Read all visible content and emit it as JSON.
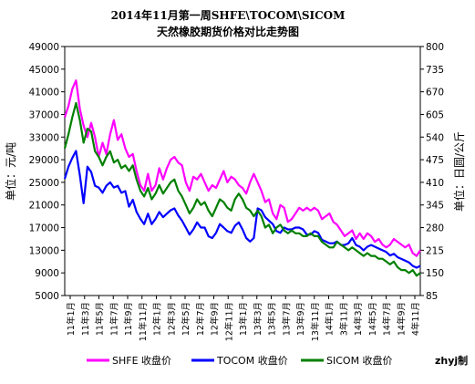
{
  "chart_data": {
    "type": "line",
    "title_line1": "2014年11月第一周SHFE\\TOCOM\\SICOM",
    "title_line2": "天然橡胶期货价格对比走势图",
    "ylabel_left": "单位：元/吨",
    "ylabel_right": "单位：日圆/公斤",
    "credit": "zhyj制",
    "y_left": {
      "min": 5000,
      "max": 49000,
      "ticks": [
        "49000",
        "45000",
        "41000",
        "37000",
        "33000",
        "29000",
        "25000",
        "21000",
        "17000",
        "13000",
        "9000",
        "5000"
      ]
    },
    "y_right": {
      "min": 85,
      "max": 800,
      "ticks": [
        "800",
        "735",
        "670",
        "605",
        "540",
        "475",
        "410",
        "345",
        "280",
        "215",
        "150",
        "85"
      ]
    },
    "x_ticks": [
      "11年1月",
      "11年3月",
      "11年5月",
      "11年7月",
      "11年9月",
      "11年11月",
      "12年1月",
      "12年3月",
      "12年5月",
      "12年7月",
      "12年9月",
      "12年11月",
      "13年1月",
      "13年3月",
      "13年5月",
      "13年7月",
      "13年9月",
      "13年11月",
      "14年1月",
      "3年11月",
      "14年3月",
      "14年5月",
      "14年7月",
      "14年9月",
      "4年11月"
    ],
    "x_range": [
      0,
      47
    ],
    "grid": false,
    "legend_position": "bottom",
    "series": [
      {
        "name": "SHFE 收盘价",
        "color": "#ff00ff",
        "axis": "left",
        "x": [
          0,
          0.5,
          1,
          1.5,
          2,
          2.5,
          3,
          3.5,
          4,
          4.5,
          5,
          5.5,
          6,
          6.5,
          7,
          7.5,
          8,
          8.5,
          9,
          9.5,
          10,
          10.5,
          11,
          11.5,
          12,
          12.5,
          13,
          13.5,
          14,
          14.5,
          15,
          15.5,
          16,
          16.5,
          17,
          17.5,
          18,
          18.5,
          19,
          19.5,
          20,
          20.5,
          21,
          21.5,
          22,
          22.5,
          23,
          23.5,
          24,
          24.5,
          25,
          25.5,
          26,
          26.5,
          27,
          27.5,
          28,
          28.5,
          29,
          29.5,
          30,
          30.5,
          31,
          31.5,
          32,
          32.5,
          33,
          33.5,
          34,
          34.5,
          35,
          35.5,
          36,
          36.5,
          37,
          37.5,
          38,
          38.5,
          39,
          39.5,
          40,
          40.5,
          41,
          41.5,
          42,
          42.5,
          43,
          43.5,
          44,
          44.5,
          45,
          45.5,
          46,
          46.5,
          47
        ],
        "values": [
          36500,
          38500,
          41500,
          43000,
          38000,
          35000,
          33000,
          35500,
          33000,
          29500,
          32000,
          30000,
          33500,
          36000,
          32500,
          33500,
          31000,
          29500,
          30000,
          27000,
          24500,
          23500,
          26500,
          23500,
          24500,
          27500,
          25500,
          27500,
          29000,
          29500,
          28500,
          28000,
          25000,
          23500,
          26000,
          25500,
          26500,
          25000,
          23500,
          24500,
          24000,
          25500,
          27000,
          25000,
          26000,
          25500,
          24500,
          24000,
          23000,
          25000,
          26500,
          25000,
          23500,
          21500,
          22000,
          19500,
          18500,
          21000,
          20500,
          18000,
          18500,
          19500,
          20500,
          20000,
          20500,
          20000,
          20500,
          20000,
          18500,
          19000,
          19500,
          18000,
          17500,
          16500,
          15500,
          16000,
          16500,
          15000,
          16000,
          15000,
          16000,
          15500,
          14500,
          15000,
          14000,
          13500,
          14000,
          15000,
          14500,
          14000,
          13500,
          14000,
          12500,
          12000,
          13000
        ]
      },
      {
        "name": "TOCOM 收盘价",
        "color": "#0000ff",
        "axis": "right",
        "x": [
          0,
          0.5,
          1,
          1.5,
          2,
          2.5,
          3,
          3.5,
          4,
          4.5,
          5,
          5.5,
          6,
          6.5,
          7,
          7.5,
          8,
          8.5,
          9,
          9.5,
          10,
          10.5,
          11,
          11.5,
          12,
          12.5,
          13,
          13.5,
          14,
          14.5,
          15,
          15.5,
          16,
          16.5,
          17,
          17.5,
          18,
          18.5,
          19,
          19.5,
          20,
          20.5,
          21,
          21.5,
          22,
          22.5,
          23,
          23.5,
          24,
          24.5,
          25,
          25.5,
          26,
          26.5,
          27,
          27.5,
          28,
          28.5,
          29,
          29.5,
          30,
          30.5,
          31,
          31.5,
          32,
          32.5,
          33,
          33.5,
          34,
          34.5,
          35,
          35.5,
          36,
          36.5,
          37,
          37.5,
          38,
          38.5,
          39,
          39.5,
          40,
          40.5,
          41,
          41.5,
          42,
          42.5,
          43,
          43.5,
          44,
          44.5,
          45,
          45.5,
          46,
          46.5,
          47
        ],
        "values": [
          420,
          455,
          480,
          500,
          430,
          350,
          455,
          440,
          400,
          395,
          380,
          400,
          410,
          395,
          400,
          380,
          385,
          340,
          360,
          325,
          305,
          290,
          320,
          290,
          305,
          325,
          310,
          320,
          330,
          335,
          315,
          300,
          280,
          260,
          275,
          295,
          280,
          280,
          255,
          250,
          265,
          290,
          280,
          270,
          265,
          285,
          295,
          275,
          250,
          240,
          250,
          335,
          330,
          310,
          300,
          290,
          270,
          265,
          280,
          275,
          275,
          280,
          280,
          275,
          260,
          260,
          270,
          265,
          245,
          240,
          235,
          235,
          240,
          230,
          230,
          235,
          250,
          230,
          225,
          215,
          225,
          230,
          225,
          220,
          215,
          210,
          200,
          205,
          195,
          190,
          185,
          180,
          170,
          165,
          170
        ]
      },
      {
        "name": "SICOM 收盘价",
        "color": "#008000",
        "axis": "left",
        "x": [
          0,
          0.5,
          1,
          1.5,
          2,
          2.5,
          3,
          3.5,
          4,
          4.5,
          5,
          5.5,
          6,
          6.5,
          7,
          7.5,
          8,
          8.5,
          9,
          9.5,
          10,
          10.5,
          11,
          11.5,
          12,
          12.5,
          13,
          13.5,
          14,
          14.5,
          15,
          15.5,
          16,
          16.5,
          17,
          17.5,
          18,
          18.5,
          19,
          19.5,
          20,
          20.5,
          21,
          21.5,
          22,
          22.5,
          23,
          23.5,
          24,
          24.5,
          25,
          25.5,
          26,
          26.5,
          27,
          27.5,
          28,
          28.5,
          29,
          29.5,
          30,
          30.5,
          31,
          31.5,
          32,
          32.5,
          33,
          33.5,
          34,
          34.5,
          35,
          35.5,
          36,
          36.5,
          37,
          37.5,
          38,
          38.5,
          39,
          39.5,
          40,
          40.5,
          41,
          41.5,
          42,
          42.5,
          43,
          43.5,
          44,
          44.5,
          45,
          45.5,
          46,
          46.5,
          47
        ],
        "values": [
          31000,
          33500,
          36500,
          39000,
          36000,
          32000,
          34500,
          34000,
          30500,
          29500,
          28000,
          29500,
          30500,
          28500,
          29000,
          27500,
          28000,
          27000,
          28000,
          25500,
          23500,
          22500,
          24000,
          22000,
          23000,
          24500,
          23000,
          24000,
          25000,
          25500,
          23500,
          22500,
          21000,
          19500,
          20500,
          22000,
          21000,
          21500,
          20000,
          19000,
          20500,
          22000,
          21500,
          20500,
          20000,
          22000,
          23000,
          22000,
          20500,
          20000,
          19000,
          20000,
          19000,
          17000,
          17500,
          16000,
          17000,
          17500,
          16500,
          16000,
          16500,
          16000,
          16000,
          15500,
          15500,
          16000,
          15500,
          15500,
          14500,
          14000,
          13500,
          13500,
          14500,
          14000,
          13500,
          13000,
          13500,
          13000,
          12500,
          12000,
          12500,
          12000,
          12000,
          11500,
          11500,
          11000,
          10500,
          11000,
          10000,
          9500,
          9500,
          9000,
          9500,
          8500,
          9000
        ]
      }
    ]
  }
}
